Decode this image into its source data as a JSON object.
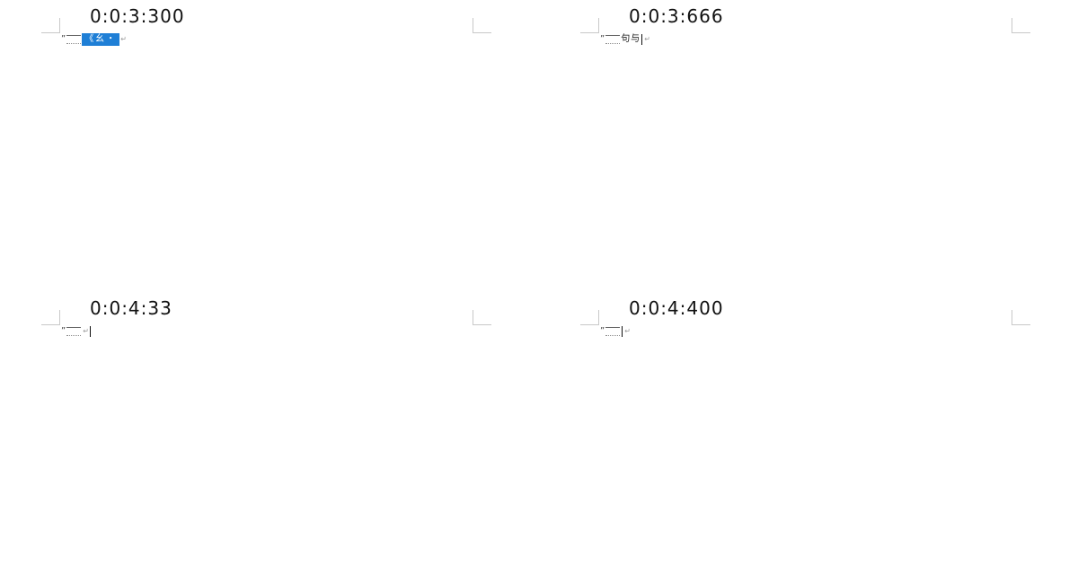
{
  "frames": [
    {
      "timestamp": "0:0:3:300",
      "quote": "”",
      "selected_text": "《幺・",
      "para_mark": "↵"
    },
    {
      "timestamp": "0:0:3:666",
      "quote": "”",
      "text": "句与",
      "para_mark": "↵"
    },
    {
      "timestamp": "0:0:4:33",
      "quote": "”",
      "para_mark": "↵"
    },
    {
      "timestamp": "0:0:4:400",
      "quote": "”",
      "para_mark": "↵"
    }
  ],
  "icons": {
    "paragraph_mark": "paragraph-mark-icon",
    "crop_mark": "crop-mark-icon"
  },
  "colors": {
    "selection": "#1f7fd6",
    "crop_mark": "#c8c8c8",
    "text": "#111111"
  }
}
